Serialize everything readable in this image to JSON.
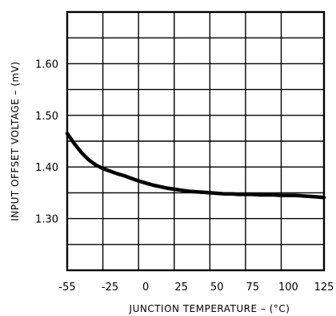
{
  "chart_data": {
    "type": "line",
    "title": "",
    "xlabel": "JUNCTION TEMPERATURE – (°C)",
    "ylabel": "INPUT OFFSET VOLTAGE – (mV)",
    "xlim": [
      -55,
      125
    ],
    "ylim": [
      1.2,
      1.7
    ],
    "grid": true,
    "x_ticks": [
      -55,
      -25,
      0,
      25,
      50,
      75,
      100,
      125
    ],
    "x_tick_labels": [
      "-55",
      "-25",
      "0",
      "25",
      "50",
      "75",
      "100",
      "125"
    ],
    "y_ticks": [
      1.3,
      1.4,
      1.5,
      1.6
    ],
    "y_tick_labels": [
      "1.30",
      "1.40",
      "1.50",
      "1.60"
    ],
    "x_grid": [
      -55,
      -30,
      -5,
      20,
      45,
      70,
      95,
      125
    ],
    "y_grid": [
      1.2,
      1.25,
      1.3,
      1.35,
      1.4,
      1.45,
      1.5,
      1.55,
      1.6,
      1.65,
      1.7
    ],
    "series": [
      {
        "color": "#000000",
        "x": [
          -55,
          -50,
          -45,
          -40,
          -35,
          -30,
          -25,
          -20,
          -15,
          -10,
          -5,
          0,
          5,
          10,
          15,
          20,
          25,
          30,
          35,
          40,
          45,
          50,
          55,
          60,
          65,
          70,
          75,
          80,
          85,
          90,
          95,
          100,
          105,
          110,
          115,
          120,
          125
        ],
        "y": [
          1.465,
          1.445,
          1.428,
          1.414,
          1.404,
          1.397,
          1.392,
          1.387,
          1.383,
          1.378,
          1.373,
          1.369,
          1.365,
          1.362,
          1.359,
          1.357,
          1.355,
          1.353,
          1.352,
          1.351,
          1.35,
          1.349,
          1.348,
          1.348,
          1.347,
          1.347,
          1.347,
          1.346,
          1.346,
          1.346,
          1.345,
          1.345,
          1.345,
          1.344,
          1.343,
          1.342,
          1.341
        ]
      }
    ]
  }
}
